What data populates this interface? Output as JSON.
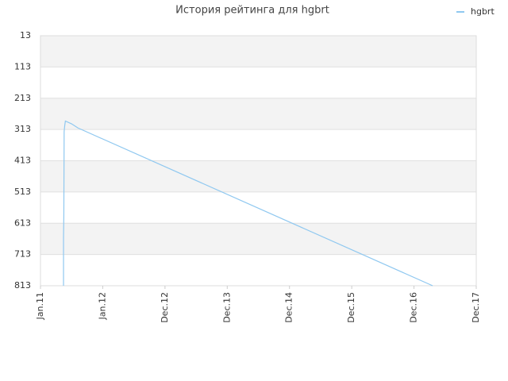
{
  "chart_data": {
    "type": "line",
    "title": "История рейтинга для hgbrt",
    "x": [
      2011.37,
      2011.37,
      2011.375,
      2011.38,
      2011.39,
      2011.4,
      2011.5,
      2011.6,
      2017.3
    ],
    "series": [
      {
        "name": "hgbrt",
        "color": "#8fc8f0",
        "values": [
          813,
          660,
          590,
          320,
          300,
          286,
          295,
          308,
          813
        ]
      }
    ],
    "xlim": [
      2011,
      2018
    ],
    "xticks": [
      {
        "value": 2011,
        "label": "Jan.11"
      },
      {
        "value": 2012,
        "label": "Jan.12"
      },
      {
        "value": 2013,
        "label": "Dec.12"
      },
      {
        "value": 2014,
        "label": "Dec.13"
      },
      {
        "value": 2015,
        "label": "Dec.14"
      },
      {
        "value": 2016,
        "label": "Dec.15"
      },
      {
        "value": 2017,
        "label": "Dec.16"
      },
      {
        "value": 2018,
        "label": "Dec.17"
      }
    ],
    "ylim": [
      813,
      13
    ],
    "yticks": [
      13,
      113,
      213,
      313,
      413,
      513,
      613,
      713,
      813
    ],
    "grid": true,
    "legend": "top-right"
  }
}
